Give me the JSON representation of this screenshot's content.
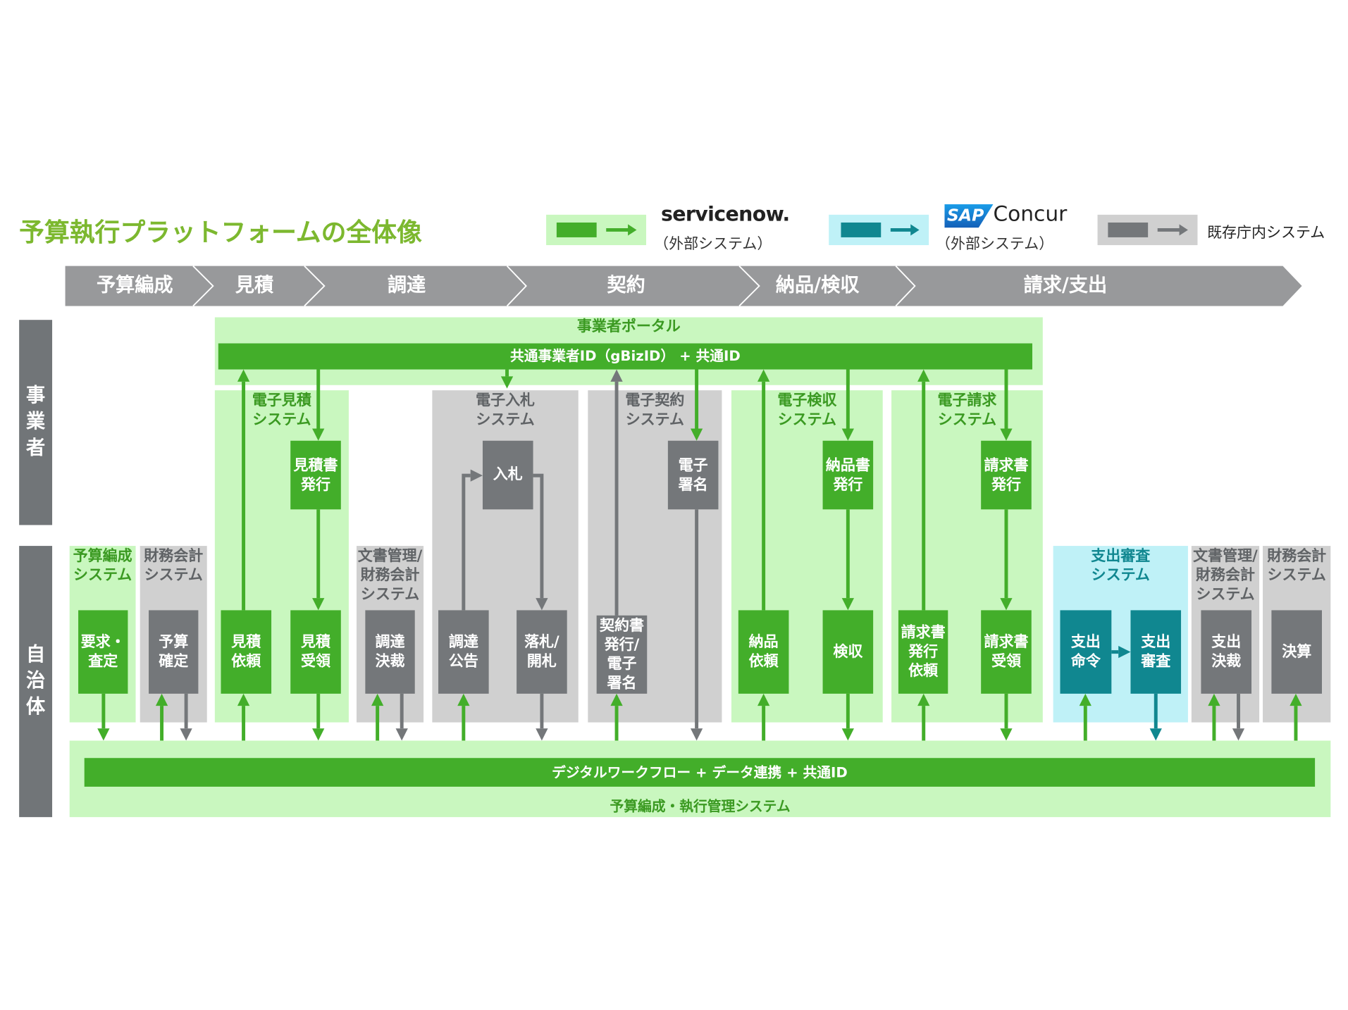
{
  "title": "予算執行プラットフォームの全体像",
  "legend": {
    "servicenow": {
      "logo": "servicenow.",
      "note": "（外部システム）",
      "color": "#43ae2a",
      "bg": "#c9f7bf"
    },
    "concur": {
      "logo_sap": "SAP",
      "logo_name": "Concur",
      "note": "（外部システム）",
      "color": "#108790",
      "bg": "#bff1f7"
    },
    "existing": {
      "label": "既存庁内システム",
      "color": "#74777a",
      "bg": "#d0d0d0"
    }
  },
  "stages": [
    "予算編成",
    "見積",
    "調達",
    "契約",
    "納品/検収",
    "請求/支出"
  ],
  "lanes": {
    "business": "事\n業\n者",
    "municipality": "自\n治\n体"
  },
  "portal": {
    "title": "事業者ポータル",
    "bar": "共通事業者ID（gBizID） + 共通ID"
  },
  "upper_systems": {
    "estimate": "電子見積\nシステム",
    "bidding": "電子入札\nシステム",
    "contract": "電子契約\nシステム",
    "inspection": "電子検収\nシステム",
    "invoice": "電子請求\nシステム"
  },
  "upper_boxes": {
    "estimate_issue": "見積書\n発行",
    "bid": "入札",
    "esign": "電子\n署名",
    "delivery_issue": "納品書\n発行",
    "invoice_issue": "請求書\n発行"
  },
  "lower_systems": {
    "budget": "予算編成\nシステム",
    "finance1": "財務会計\nシステム",
    "docfin1": "文書管理/\n財務会計\nシステム",
    "payment_review": "支出審査\nシステム",
    "docfin2": "文書管理/\n財務会計\nシステム",
    "finance2": "財務会計\nシステム"
  },
  "lower_boxes": {
    "request": "要求・\n査定",
    "budget_confirm": "予算\n確定",
    "estimate_request": "見積\n依頼",
    "estimate_receive": "見積\n受領",
    "procure_approve": "調達\n決裁",
    "procure_notice": "調達\n公告",
    "award": "落札/\n開札",
    "contract_issue": "契約書\n発行/\n電子\n署名",
    "delivery_request": "納品\n依頼",
    "inspection": "検収",
    "invoice_request": "請求書\n発行\n依頼",
    "invoice_receive": "請求書\n受領",
    "payment_order": "支出\n命令",
    "payment_review": "支出\n審査",
    "payment_approve": "支出\n決裁",
    "settlement": "決算"
  },
  "platform": {
    "bar": "デジタルワークフロー + データ連携 + 共通ID",
    "title": "予算編成・執行管理システム"
  },
  "colors": {
    "green": "#43ae2a",
    "light_green": "#c9f7bf",
    "gray": "#74777a",
    "light_gray": "#d0d0d0",
    "teal": "#108790",
    "cyan": "#bff1f7",
    "title": "#7cb82f",
    "chevron": "#98999b"
  }
}
